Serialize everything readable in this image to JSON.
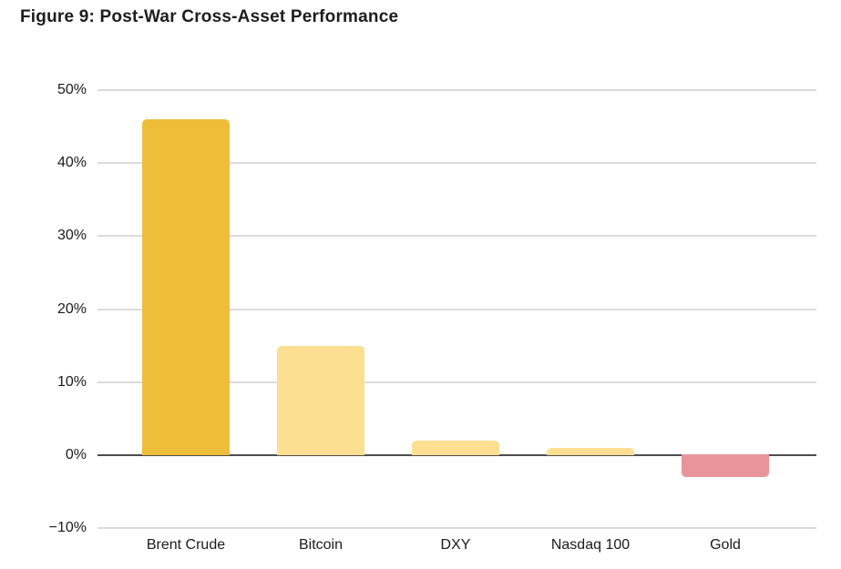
{
  "figure": {
    "title": "Figure 9: Post-War Cross-Asset Performance"
  },
  "chart_data": {
    "type": "bar",
    "title": "Figure 9: Post-War Cross-Asset Performance",
    "categories": [
      "Brent Crude",
      "Bitcoin",
      "DXY",
      "Nasdaq 100",
      "Gold"
    ],
    "values": [
      46,
      15,
      2,
      1,
      -3
    ],
    "bar_colors": [
      "#eebe3b",
      "#fddf92",
      "#fddf92",
      "#fddf92",
      "#e9939a"
    ],
    "xlabel": "",
    "ylabel": "",
    "ylim": [
      -10,
      50
    ],
    "yticks": [
      50,
      40,
      30,
      20,
      10,
      0,
      -10
    ],
    "ytick_labels": [
      "50%",
      "40%",
      "30%",
      "20%",
      "10%",
      "0%",
      "−10%"
    ],
    "grid": true,
    "legend": false,
    "zero_line": true,
    "colors": {
      "grid": "#dcdcdc",
      "zero_line": "#4d4d4d",
      "text": "#1a1a1a",
      "title": "#1d1d1d",
      "background": "#ffffff"
    }
  }
}
